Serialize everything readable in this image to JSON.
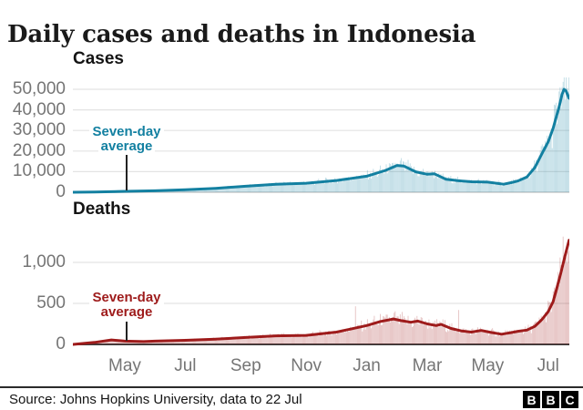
{
  "title": "Daily cases and deaths in Indonesia",
  "footer": {
    "source": "Source: Johns Hopkins University, data to 22 Jul",
    "logo": [
      "B",
      "B",
      "C"
    ]
  },
  "colors": {
    "cases_line": "#1380A1",
    "cases_bars": "rgba(19,128,161,0.32)",
    "deaths_line": "#9E1B1B",
    "deaths_bars": "rgba(158,27,27,0.32)",
    "gridline": "#e3e3e3",
    "axis_text": "#757575",
    "pointer_line": "#222222"
  },
  "x_axis": {
    "range": [
      "2020-03-10",
      "2021-07-22"
    ],
    "ticks": [
      {
        "date": "2020-05-01",
        "label": "May"
      },
      {
        "date": "2020-07-01",
        "label": "Jul"
      },
      {
        "date": "2020-09-01",
        "label": "Sep"
      },
      {
        "date": "2020-11-01",
        "label": "Nov"
      },
      {
        "date": "2021-01-01",
        "label": "Jan"
      },
      {
        "date": "2021-03-01",
        "label": "Mar"
      },
      {
        "date": "2021-05-01",
        "label": "May"
      },
      {
        "date": "2021-07-01",
        "label": "Jul"
      }
    ]
  },
  "chart_data": [
    {
      "title": "Cases",
      "type": "line",
      "subtype": "seven-day average line over daily bars",
      "annotation": {
        "line1": "Seven-day",
        "line2": "average"
      },
      "ylim": [
        0,
        55750
      ],
      "grid": true,
      "y_ticks": [
        {
          "value": 0,
          "label": "0"
        },
        {
          "value": 10000,
          "label": "10,000"
        },
        {
          "value": 20000,
          "label": "20,000"
        },
        {
          "value": 30000,
          "label": "30,000"
        },
        {
          "value": 40000,
          "label": "40,000"
        },
        {
          "value": 50000,
          "label": "50,000"
        }
      ],
      "zero_axis_color": "#d8d8d8",
      "series": [
        {
          "name": "Seven-day average",
          "points": [
            [
              "2020-03-10",
              0
            ],
            [
              "2020-04-01",
              150
            ],
            [
              "2020-05-01",
              450
            ],
            [
              "2020-06-01",
              700
            ],
            [
              "2020-07-01",
              1200
            ],
            [
              "2020-08-01",
              1900
            ],
            [
              "2020-09-01",
              2900
            ],
            [
              "2020-10-01",
              3900
            ],
            [
              "2020-11-01",
              4400
            ],
            [
              "2020-12-01",
              5700
            ],
            [
              "2021-01-01",
              7800
            ],
            [
              "2021-01-20",
              10600
            ],
            [
              "2021-02-01",
              13000
            ],
            [
              "2021-02-08",
              12700
            ],
            [
              "2021-02-20",
              9900
            ],
            [
              "2021-03-01",
              8700
            ],
            [
              "2021-03-08",
              9000
            ],
            [
              "2021-03-20",
              6300
            ],
            [
              "2021-04-01",
              5600
            ],
            [
              "2021-04-15",
              5100
            ],
            [
              "2021-05-01",
              4900
            ],
            [
              "2021-05-17",
              3900
            ],
            [
              "2021-05-25",
              4700
            ],
            [
              "2021-06-01",
              5500
            ],
            [
              "2021-06-10",
              7400
            ],
            [
              "2021-06-18",
              12000
            ],
            [
              "2021-06-25",
              18500
            ],
            [
              "2021-07-01",
              24500
            ],
            [
              "2021-07-06",
              31000
            ],
            [
              "2021-07-12",
              41500
            ],
            [
              "2021-07-15",
              47500
            ],
            [
              "2021-07-17",
              50000
            ],
            [
              "2021-07-19",
              49200
            ],
            [
              "2021-07-22",
              45600
            ]
          ]
        }
      ],
      "daily_bars": {
        "description": "daily reported cases, max ~56,000 in mid-July 2021",
        "noise_min": 0.74,
        "noise_max": 1.28,
        "weekly_amplitude": 0.07,
        "seed": 1,
        "spikes": []
      }
    },
    {
      "title": "Deaths",
      "type": "line",
      "subtype": "seven-day average line over daily bars",
      "annotation": {
        "line1": "Seven-day",
        "line2": "average"
      },
      "ylim": [
        0,
        1478
      ],
      "grid": true,
      "y_ticks": [
        {
          "value": 0,
          "label": "0"
        },
        {
          "value": 500,
          "label": "500"
        },
        {
          "value": 1000,
          "label": "1,000"
        }
      ],
      "zero_axis_color": "#3d3d3d",
      "series": [
        {
          "name": "Seven-day average",
          "points": [
            [
              "2020-03-10",
              0
            ],
            [
              "2020-04-01",
              25
            ],
            [
              "2020-04-18",
              55
            ],
            [
              "2020-05-01",
              40
            ],
            [
              "2020-05-20",
              35
            ],
            [
              "2020-06-01",
              40
            ],
            [
              "2020-07-01",
              50
            ],
            [
              "2020-08-01",
              65
            ],
            [
              "2020-09-01",
              85
            ],
            [
              "2020-10-01",
              105
            ],
            [
              "2020-11-01",
              110
            ],
            [
              "2020-12-01",
              150
            ],
            [
              "2021-01-01",
              230
            ],
            [
              "2021-01-15",
              280
            ],
            [
              "2021-01-28",
              310
            ],
            [
              "2021-02-05",
              290
            ],
            [
              "2021-02-15",
              270
            ],
            [
              "2021-02-22",
              285
            ],
            [
              "2021-03-01",
              250
            ],
            [
              "2021-03-10",
              230
            ],
            [
              "2021-03-15",
              245
            ],
            [
              "2021-03-25",
              195
            ],
            [
              "2021-04-05",
              165
            ],
            [
              "2021-04-15",
              150
            ],
            [
              "2021-04-25",
              170
            ],
            [
              "2021-05-05",
              145
            ],
            [
              "2021-05-15",
              125
            ],
            [
              "2021-05-25",
              145
            ],
            [
              "2021-06-01",
              160
            ],
            [
              "2021-06-10",
              175
            ],
            [
              "2021-06-18",
              220
            ],
            [
              "2021-06-25",
              300
            ],
            [
              "2021-07-01",
              400
            ],
            [
              "2021-07-06",
              520
            ],
            [
              "2021-07-10",
              700
            ],
            [
              "2021-07-14",
              880
            ],
            [
              "2021-07-18",
              1080
            ],
            [
              "2021-07-22",
              1270
            ]
          ]
        }
      ],
      "daily_bars": {
        "description": "daily reported deaths, max ~1,430 on 22 Jul 2021",
        "noise_min": 0.72,
        "noise_max": 1.3,
        "weekly_amplitude": 0.07,
        "seed": 7,
        "spikes": [
          [
            "2020-12-20",
            465
          ],
          [
            "2021-04-02",
            420
          ]
        ]
      }
    }
  ]
}
